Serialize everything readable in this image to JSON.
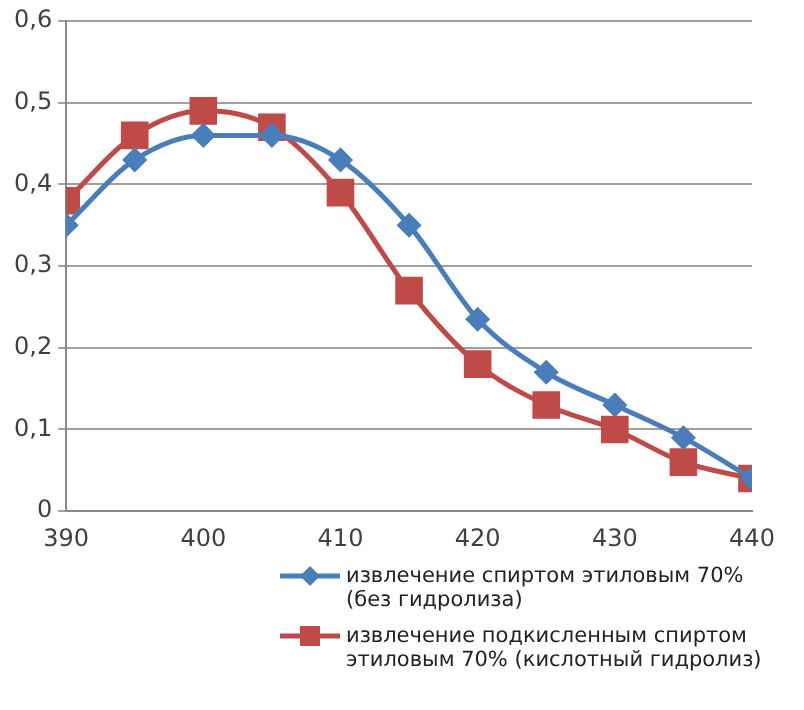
{
  "chart_data": {
    "type": "line",
    "x": [
      390,
      395,
      400,
      405,
      410,
      415,
      420,
      425,
      430,
      435,
      440
    ],
    "series": [
      {
        "name": "извлечение спиртом этиловым 70% (без гидролиза)",
        "color": "#4a7ebb",
        "marker": "diamond",
        "values": [
          0.35,
          0.43,
          0.46,
          0.46,
          0.43,
          0.35,
          0.235,
          0.17,
          0.13,
          0.09,
          0.04
        ]
      },
      {
        "name": "извлечение подкисленным спиртом этиловым 70% (кислотный гидролиз)",
        "color": "#be4b48",
        "marker": "square",
        "values": [
          0.38,
          0.46,
          0.49,
          0.47,
          0.39,
          0.27,
          0.18,
          0.13,
          0.1,
          0.06,
          0.04
        ]
      }
    ],
    "xlim": [
      390,
      440
    ],
    "xticks": [
      390,
      400,
      410,
      420,
      430,
      440
    ],
    "ylim": [
      0,
      0.6
    ],
    "yticks": [
      0,
      {
        "value": 0.1,
        "label": "0,1"
      },
      {
        "value": 0.2,
        "label": "0,2"
      },
      {
        "value": 0.3,
        "label": "0,3"
      },
      {
        "value": 0.4,
        "label": "0,4"
      },
      {
        "value": 0.5,
        "label": "0,5"
      },
      {
        "value": 0.6,
        "label": "0,6"
      }
    ],
    "grid": "y",
    "legend": "bottom",
    "line_style": "solid"
  }
}
